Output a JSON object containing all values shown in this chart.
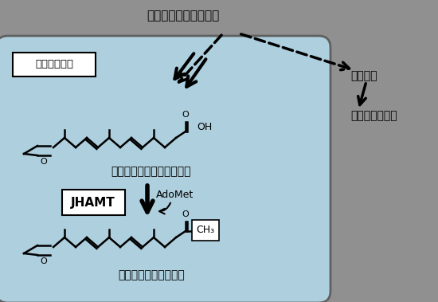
{
  "bg_color": "#c8dce8",
  "box_bg": "#b8d0e0",
  "title": "ファルネシルニリン酸",
  "label_insect": "昆虫アラタ体",
  "label_jha": "幼若ホルモン酸（不活性）",
  "label_jh": "幼若ホルモン（活性）",
  "label_jhamt": "JHAMT",
  "label_adomet": "AdoMet",
  "label_animal": "動物細胞",
  "label_cholesterol": "コレステロール",
  "label_ch3": "CH₃",
  "outer_bg": "#a0a0a0",
  "fig_bg": "#a0a0a0"
}
